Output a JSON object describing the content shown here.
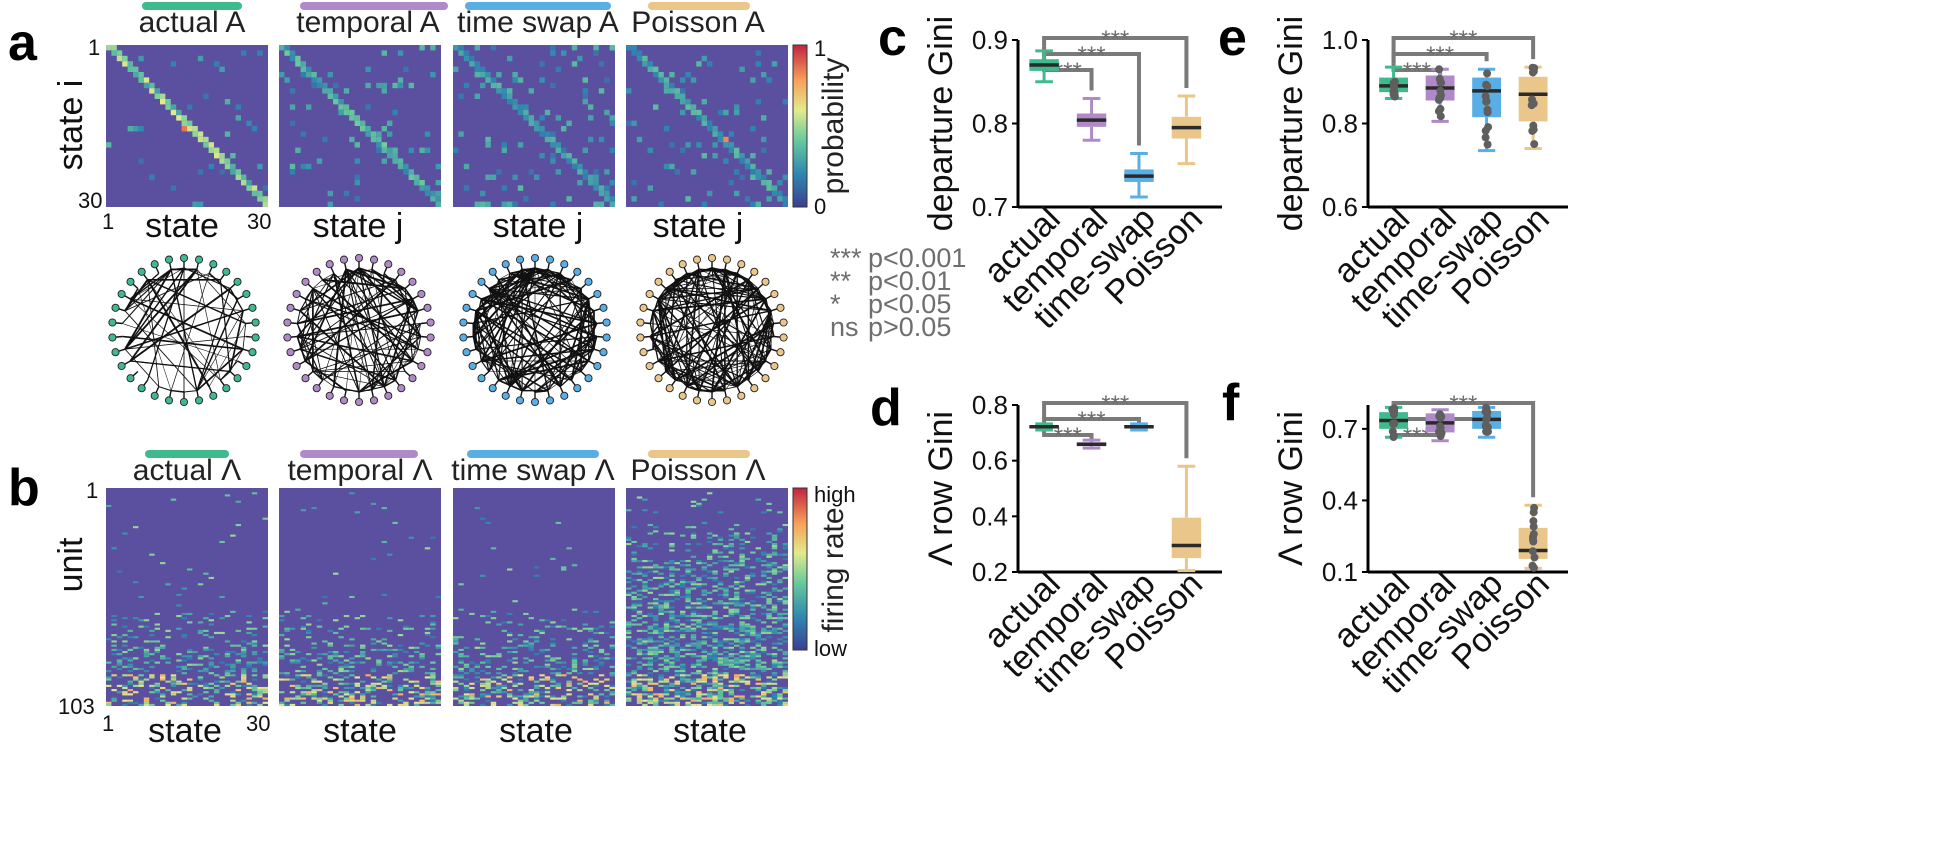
{
  "panel_labels": {
    "a": "a",
    "b": "b",
    "c": "c",
    "d": "d",
    "e": "e",
    "f": "f"
  },
  "colors": {
    "actual": "#3fba8c",
    "temporal": "#b08ac8",
    "time_swap": "#5aaee6",
    "poisson": "#eac68a",
    "bracket": "#7a7a7a",
    "heat_bg": "#5b4f9f"
  },
  "legend": {
    "rows": [
      {
        "sym": "***",
        "text": "p<0.001"
      },
      {
        "sym": "**",
        "text": "p<0.01"
      },
      {
        "sym": "*",
        "text": "p<0.05"
      },
      {
        "sym": "ns",
        "text": "p>0.05"
      }
    ]
  },
  "chart_data": [
    {
      "type": "heatmap",
      "panel": "a",
      "titles": [
        "actual A",
        "temporal A",
        "time swap A",
        "Poisson A"
      ],
      "xlabels": [
        "state",
        "state j",
        "state j",
        "state j"
      ],
      "ylabel": "state i",
      "xticks": [
        "1",
        "30"
      ],
      "yticks": [
        "1",
        "30"
      ],
      "colorbar": {
        "label": "probability",
        "min": "0",
        "max": "1"
      },
      "size": 30
    },
    {
      "type": "heatmap",
      "panel": "b",
      "titles": [
        "actual Λ",
        "temporal Λ",
        "time swap Λ",
        "Poisson Λ"
      ],
      "xlabels": [
        "state",
        "state",
        "state",
        "state"
      ],
      "ylabel": "unit",
      "xticks": [
        "1",
        "30"
      ],
      "yticks": [
        "1",
        "103"
      ],
      "colorbar": {
        "label": "firing rate",
        "min": "low",
        "max": "high"
      }
    },
    {
      "type": "box",
      "panel": "c",
      "ylabel": "departure Gini",
      "categories": [
        "actual",
        "temporal",
        "time-swap",
        "Poisson"
      ],
      "ylim": [
        0.7,
        0.9
      ],
      "yticks": [
        "0.7",
        "0.8",
        "0.9"
      ],
      "boxes": [
        {
          "name": "actual",
          "min": 0.85,
          "q1": 0.863,
          "median": 0.87,
          "q3": 0.877,
          "max": 0.887
        },
        {
          "name": "temporal",
          "min": 0.78,
          "q1": 0.796,
          "median": 0.804,
          "q3": 0.812,
          "max": 0.83
        },
        {
          "name": "time-swap",
          "min": 0.712,
          "q1": 0.73,
          "median": 0.737,
          "q3": 0.745,
          "max": 0.764
        },
        {
          "name": "Poisson",
          "min": 0.752,
          "q1": 0.782,
          "median": 0.795,
          "q3": 0.808,
          "max": 0.833
        }
      ],
      "brackets": [
        {
          "to": "temporal",
          "label": "***"
        },
        {
          "to": "time-swap",
          "label": "***"
        },
        {
          "to": "Poisson",
          "label": "***"
        }
      ]
    },
    {
      "type": "box",
      "panel": "d",
      "ylabel": "Λ row Gini",
      "categories": [
        "actual",
        "temporal",
        "time-swap",
        "Poisson"
      ],
      "ylim": [
        0.2,
        0.8
      ],
      "yticks": [
        "0.2",
        "0.4",
        "0.6",
        "0.8"
      ],
      "boxes": [
        {
          "name": "actual",
          "min": 0.71,
          "q1": 0.718,
          "median": 0.722,
          "q3": 0.727,
          "max": 0.732
        },
        {
          "name": "temporal",
          "min": 0.645,
          "q1": 0.652,
          "median": 0.659,
          "q3": 0.666,
          "max": 0.674
        },
        {
          "name": "time-swap",
          "min": 0.71,
          "q1": 0.718,
          "median": 0.722,
          "q3": 0.727,
          "max": 0.732
        },
        {
          "name": "Poisson",
          "min": 0.205,
          "q1": 0.25,
          "median": 0.295,
          "q3": 0.395,
          "max": 0.58
        }
      ],
      "brackets": [
        {
          "to": "temporal",
          "label": "***"
        },
        {
          "to": "time-swap",
          "label": "***"
        },
        {
          "to": "Poisson",
          "label": "***"
        }
      ]
    },
    {
      "type": "box",
      "panel": "e",
      "ylabel": "departure Gini",
      "categories": [
        "actual",
        "temporal",
        "time-swap",
        "Poisson"
      ],
      "ylim": [
        0.6,
        1.0
      ],
      "yticks": [
        "0.6",
        "0.8",
        "1.0"
      ],
      "boxes": [
        {
          "name": "actual",
          "min": 0.86,
          "q1": 0.875,
          "median": 0.89,
          "q3": 0.91,
          "max": 0.935
        },
        {
          "name": "temporal",
          "min": 0.805,
          "q1": 0.855,
          "median": 0.885,
          "q3": 0.915,
          "max": 0.93
        },
        {
          "name": "time-swap",
          "min": 0.735,
          "q1": 0.815,
          "median": 0.878,
          "q3": 0.91,
          "max": 0.93
        },
        {
          "name": "Poisson",
          "min": 0.74,
          "q1": 0.805,
          "median": 0.87,
          "q3": 0.912,
          "max": 0.935
        }
      ],
      "brackets": [
        {
          "to": "temporal",
          "label": "***"
        },
        {
          "to": "time-swap",
          "label": "***"
        },
        {
          "to": "Poisson",
          "label": "***"
        }
      ]
    },
    {
      "type": "box",
      "panel": "f",
      "ylabel": "Λ row Gini",
      "categories": [
        "actual",
        "temporal",
        "time-swap",
        "Poisson"
      ],
      "ylim": [
        0.1,
        0.8
      ],
      "yticks": [
        "0.1",
        "0.4",
        "0.7"
      ],
      "boxes": [
        {
          "name": "actual",
          "min": 0.665,
          "q1": 0.7,
          "median": 0.735,
          "q3": 0.77,
          "max": 0.79
        },
        {
          "name": "temporal",
          "min": 0.65,
          "q1": 0.685,
          "median": 0.725,
          "q3": 0.765,
          "max": 0.78
        },
        {
          "name": "time-swap",
          "min": 0.665,
          "q1": 0.7,
          "median": 0.74,
          "q3": 0.775,
          "max": 0.79
        },
        {
          "name": "Poisson",
          "min": 0.115,
          "q1": 0.155,
          "median": 0.19,
          "q3": 0.285,
          "max": 0.38
        }
      ],
      "brackets": [
        {
          "to": "temporal",
          "label": "***"
        },
        {
          "to": "time-swap",
          "label": "*"
        },
        {
          "to": "Poisson",
          "label": "***"
        }
      ]
    }
  ]
}
